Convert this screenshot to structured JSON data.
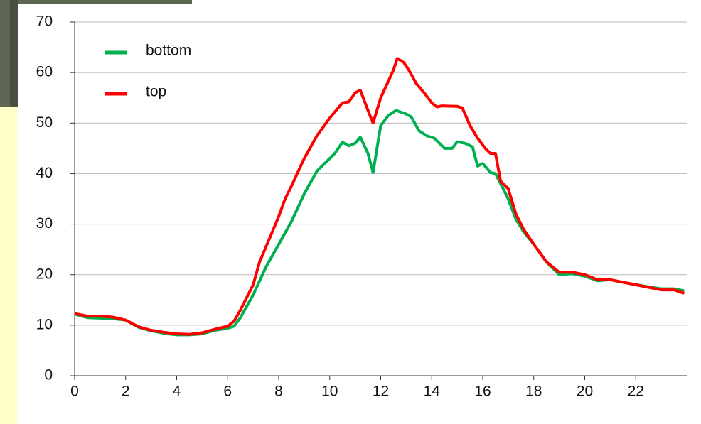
{
  "chart_data": {
    "type": "line",
    "xlim": [
      0,
      24
    ],
    "xticks": [
      0,
      2,
      4,
      6,
      8,
      10,
      12,
      14,
      16,
      18,
      20,
      22
    ],
    "ylim": [
      0,
      70
    ],
    "yticks": [
      0,
      10,
      20,
      30,
      40,
      50,
      60,
      70
    ],
    "grid": true,
    "legend": "upper left",
    "series": [
      {
        "name": "bottom",
        "color": "#00b050",
        "x": [
          0,
          0.5,
          1,
          1.5,
          2,
          2.5,
          3,
          3.5,
          4,
          4.5,
          5,
          5.5,
          6,
          6.25,
          6.5,
          7,
          7.5,
          8,
          8.5,
          9,
          9.5,
          10,
          10.2,
          10.5,
          10.75,
          11,
          11.2,
          11.5,
          11.7,
          12,
          12.3,
          12.6,
          13,
          13.2,
          13.5,
          13.8,
          14.1,
          14.3,
          14.5,
          14.8,
          15,
          15.3,
          15.6,
          15.8,
          16,
          16.3,
          16.5,
          16.8,
          17,
          17.3,
          17.6,
          18,
          18.5,
          19,
          19.5,
          20,
          20.5,
          21,
          21.5,
          22,
          22.5,
          23,
          23.5,
          23.9
        ],
        "values": [
          12.2,
          11.5,
          11.4,
          11.3,
          11,
          9.6,
          8.9,
          8.4,
          8.1,
          8.1,
          8.3,
          9.0,
          9.4,
          9.8,
          11.5,
          16,
          21.5,
          26,
          30.5,
          36,
          40.5,
          43,
          44,
          46.2,
          45.5,
          46,
          47.2,
          44,
          40.2,
          49.5,
          51.5,
          52.5,
          51.8,
          51.2,
          48.5,
          47.5,
          47,
          46,
          45,
          45,
          46.3,
          46,
          45.3,
          41.5,
          42,
          40.2,
          40,
          37,
          35,
          31,
          28.5,
          26,
          22.5,
          20,
          20.2,
          19.7,
          18.8,
          19,
          18.5,
          18,
          17.6,
          17.2,
          17.2,
          16.8
        ]
      },
      {
        "name": "top",
        "color": "#ff0000",
        "x": [
          0,
          0.5,
          1,
          1.5,
          2,
          2.5,
          3,
          3.5,
          4,
          4.5,
          5,
          5.5,
          6,
          6.25,
          6.5,
          7,
          7.25,
          7.5,
          8,
          8.25,
          8.5,
          9,
          9.5,
          10,
          10.25,
          10.5,
          10.75,
          11,
          11.2,
          11.5,
          11.7,
          12,
          12.5,
          12.65,
          12.9,
          13.1,
          13.4,
          13.7,
          14,
          14.2,
          14.4,
          15,
          15.2,
          15.5,
          15.8,
          16.1,
          16.3,
          16.5,
          16.7,
          17,
          17.3,
          17.6,
          18,
          18.5,
          19,
          19.5,
          20,
          20.5,
          21,
          21.5,
          22,
          22.5,
          23,
          23.5,
          23.9
        ],
        "values": [
          12.3,
          11.8,
          11.8,
          11.6,
          11.0,
          9.7,
          9.0,
          8.6,
          8.3,
          8.2,
          8.5,
          9.2,
          9.8,
          10.8,
          13,
          18,
          22.5,
          25.5,
          31.5,
          35,
          37.5,
          43,
          47.5,
          51,
          52.5,
          54,
          54.2,
          56,
          56.5,
          52.5,
          50,
          55,
          60.5,
          62.8,
          62,
          60.5,
          57.8,
          56,
          54,
          53.2,
          53.4,
          53.3,
          53,
          49.5,
          47,
          45,
          44,
          44,
          38.5,
          37,
          32,
          29,
          26,
          22.5,
          20.5,
          20.5,
          20,
          19,
          19,
          18.5,
          18,
          17.5,
          17.0,
          17.0,
          16.3
        ]
      }
    ]
  }
}
